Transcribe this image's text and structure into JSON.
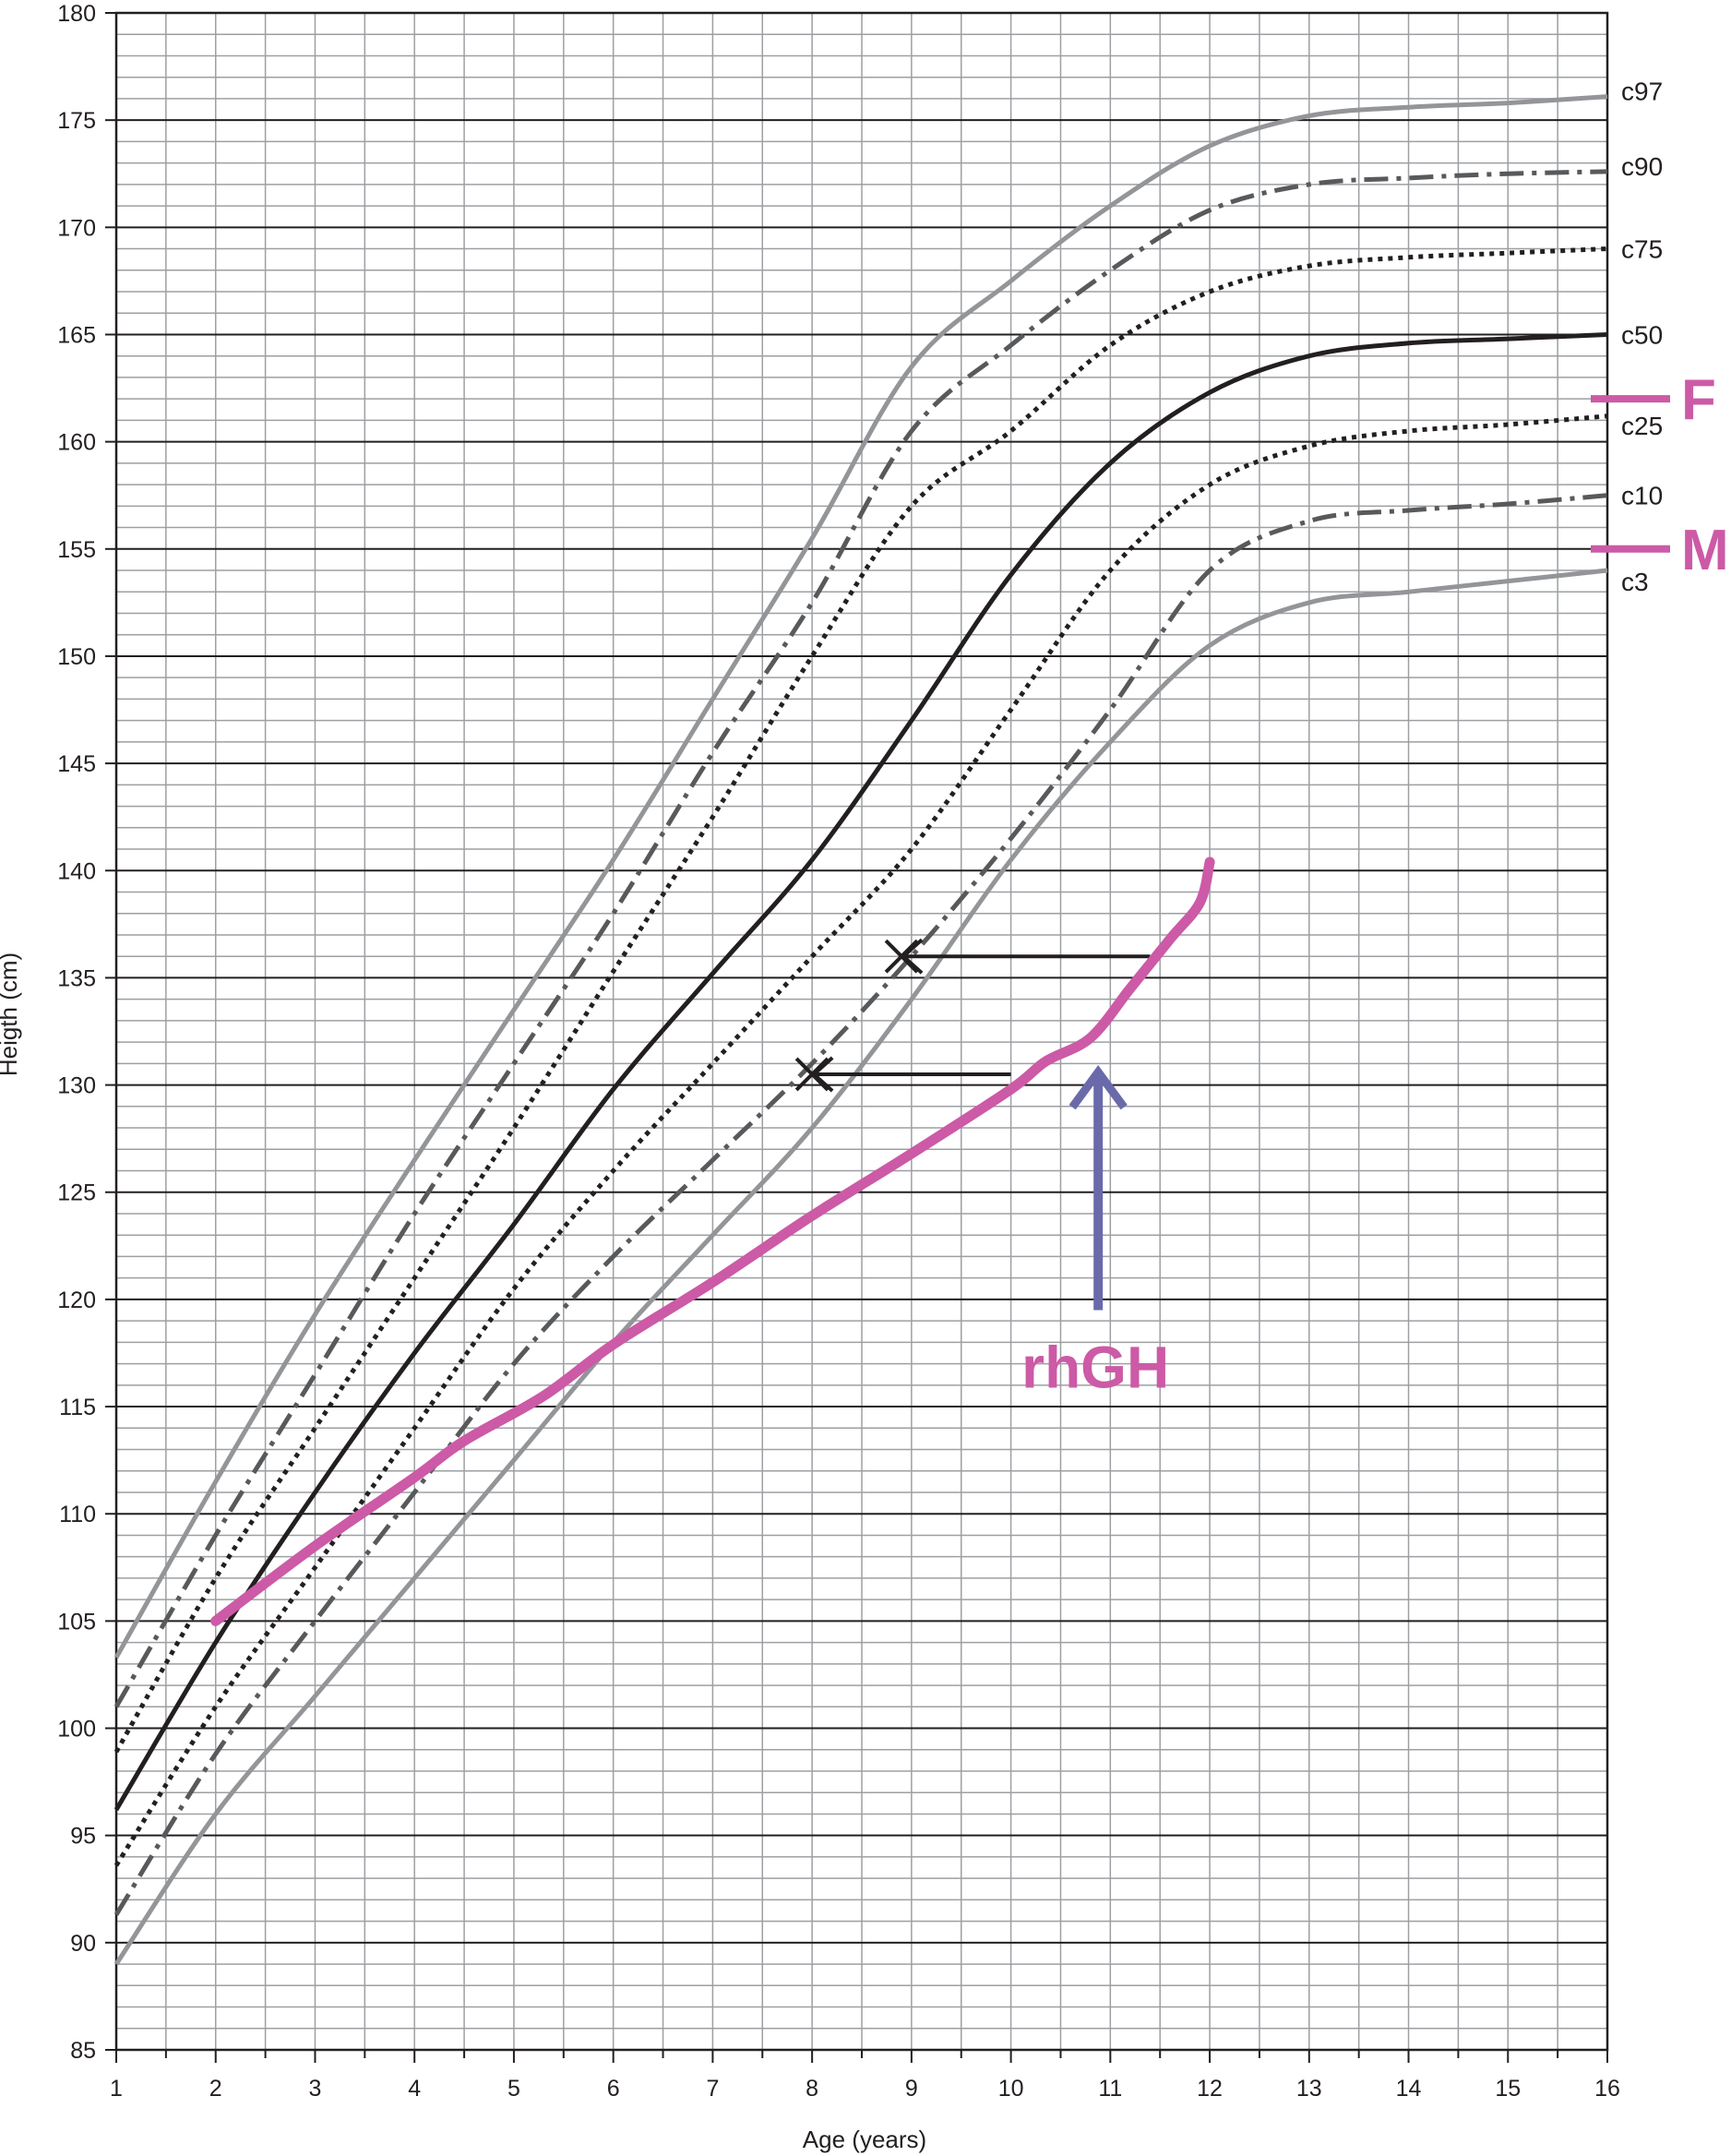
{
  "chart_data": {
    "type": "line",
    "xlabel": "Age (years)",
    "ylabel": "Heigth (cm)",
    "xlim": [
      1,
      16
    ],
    "ylim": [
      85,
      180
    ],
    "x_ticks": [
      "1",
      "2",
      "3",
      "4",
      "5",
      "6",
      "7",
      "8",
      "9",
      "10",
      "11",
      "12",
      "13",
      "14",
      "15",
      "16"
    ],
    "y_ticks": [
      "85",
      "90",
      "95",
      "100",
      "105",
      "110",
      "115",
      "120",
      "125",
      "130",
      "135",
      "140",
      "145",
      "150",
      "155",
      "160",
      "165",
      "170",
      "175",
      "180"
    ],
    "grid": true,
    "colors": {
      "grid_major": "#231f20",
      "grid_minor": "#9d9fa2",
      "outer_percentiles": "#939598",
      "dashdot_percentiles": "#58595b",
      "median": "#231f20",
      "patient": "#cc5aa6",
      "treatment_arrow": "#6a6aab"
    },
    "percentiles": [
      {
        "label": "c97",
        "style": "solid-gray",
        "points": [
          [
            1,
            103.3
          ],
          [
            2,
            111.5
          ],
          [
            3,
            119.3
          ],
          [
            4,
            126.5
          ],
          [
            5,
            133.5
          ],
          [
            6,
            140.5
          ],
          [
            7,
            148
          ],
          [
            8,
            155.5
          ],
          [
            9,
            163.5
          ],
          [
            10,
            167.5
          ],
          [
            11,
            171
          ],
          [
            12,
            173.8
          ],
          [
            13,
            175.2
          ],
          [
            14,
            175.6
          ],
          [
            15,
            175.8
          ],
          [
            16,
            176.1
          ]
        ]
      },
      {
        "label": "c90",
        "style": "dashdot-dark",
        "points": [
          [
            1,
            101
          ],
          [
            2,
            109
          ],
          [
            3,
            116.5
          ],
          [
            4,
            124
          ],
          [
            5,
            131
          ],
          [
            6,
            138
          ],
          [
            7,
            145.5
          ],
          [
            8,
            152.5
          ],
          [
            9,
            160.5
          ],
          [
            10,
            164.5
          ],
          [
            11,
            168
          ],
          [
            12,
            170.8
          ],
          [
            13,
            172
          ],
          [
            14,
            172.3
          ],
          [
            15,
            172.5
          ],
          [
            16,
            172.6
          ]
        ]
      },
      {
        "label": "c75",
        "style": "dotted-black",
        "points": [
          [
            1,
            98.9
          ],
          [
            2,
            107
          ],
          [
            3,
            114
          ],
          [
            4,
            121
          ],
          [
            5,
            128
          ],
          [
            6,
            135.3
          ],
          [
            7,
            142.5
          ],
          [
            8,
            150
          ],
          [
            9,
            157
          ],
          [
            10,
            160.5
          ],
          [
            11,
            164.5
          ],
          [
            12,
            167
          ],
          [
            13,
            168.2
          ],
          [
            14,
            168.6
          ],
          [
            15,
            168.8
          ],
          [
            16,
            169
          ]
        ]
      },
      {
        "label": "c50",
        "style": "solid-black",
        "points": [
          [
            1,
            96.2
          ],
          [
            2,
            104
          ],
          [
            3,
            111
          ],
          [
            4,
            117.5
          ],
          [
            5,
            123.5
          ],
          [
            6,
            129.8
          ],
          [
            7,
            135.2
          ],
          [
            8,
            140.5
          ],
          [
            9,
            147
          ],
          [
            10,
            153.8
          ],
          [
            11,
            159
          ],
          [
            12,
            162.3
          ],
          [
            13,
            164
          ],
          [
            14,
            164.6
          ],
          [
            15,
            164.8
          ],
          [
            16,
            165
          ]
        ]
      },
      {
        "label": "c25",
        "style": "dotted-black",
        "points": [
          [
            1,
            93.6
          ],
          [
            2,
            101
          ],
          [
            3,
            107.5
          ],
          [
            4,
            114
          ],
          [
            5,
            120.5
          ],
          [
            6,
            126
          ],
          [
            7,
            131
          ],
          [
            8,
            136
          ],
          [
            9,
            141
          ],
          [
            10,
            147.5
          ],
          [
            11,
            154
          ],
          [
            12,
            158
          ],
          [
            13,
            159.8
          ],
          [
            14,
            160.5
          ],
          [
            15,
            160.8
          ],
          [
            16,
            161.2
          ]
        ]
      },
      {
        "label": "c10",
        "style": "dashdot-dark",
        "points": [
          [
            1,
            91.3
          ],
          [
            2,
            98.8
          ],
          [
            3,
            105
          ],
          [
            4,
            111
          ],
          [
            5,
            117
          ],
          [
            6,
            122
          ],
          [
            7,
            126.5
          ],
          [
            8,
            131
          ],
          [
            9,
            136
          ],
          [
            10,
            141.5
          ],
          [
            11,
            147.5
          ],
          [
            12,
            154
          ],
          [
            13,
            156.3
          ],
          [
            14,
            156.8
          ],
          [
            15,
            157.1
          ],
          [
            16,
            157.5
          ]
        ]
      },
      {
        "label": "c3",
        "style": "solid-gray",
        "points": [
          [
            1,
            89
          ],
          [
            2,
            96
          ],
          [
            3,
            101.5
          ],
          [
            4,
            107
          ],
          [
            5,
            112.5
          ],
          [
            6,
            118
          ],
          [
            7,
            123
          ],
          [
            8,
            128
          ],
          [
            9,
            134
          ],
          [
            10,
            140.5
          ],
          [
            11,
            146
          ],
          [
            12,
            150.5
          ],
          [
            13,
            152.5
          ],
          [
            14,
            153
          ],
          [
            15,
            153.5
          ],
          [
            16,
            154
          ]
        ]
      }
    ],
    "patient_growth": {
      "points": [
        [
          2,
          105
        ],
        [
          3,
          108.5
        ],
        [
          4,
          111.7
        ],
        [
          4.5,
          113.4
        ],
        [
          5.3,
          115.5
        ],
        [
          6,
          117.9
        ],
        [
          7,
          120.8
        ],
        [
          8,
          123.9
        ],
        [
          9,
          126.8
        ],
        [
          10,
          129.8
        ],
        [
          10.35,
          131.1
        ],
        [
          10.8,
          132.2
        ],
        [
          11.2,
          134.5
        ],
        [
          11.6,
          136.8
        ],
        [
          11.9,
          138.5
        ],
        [
          12,
          140.4
        ]
      ]
    },
    "parents": [
      {
        "label": "F",
        "height": 162
      },
      {
        "label": "M",
        "height": 155
      }
    ],
    "bone_age_marks": [
      {
        "from_age": 11.4,
        "to_age": 8.9,
        "height": 136
      },
      {
        "from_age": 10,
        "to_age": 8,
        "height": 130.5
      }
    ],
    "treatment_start": {
      "label": "rhGH",
      "age": 10.85
    }
  }
}
